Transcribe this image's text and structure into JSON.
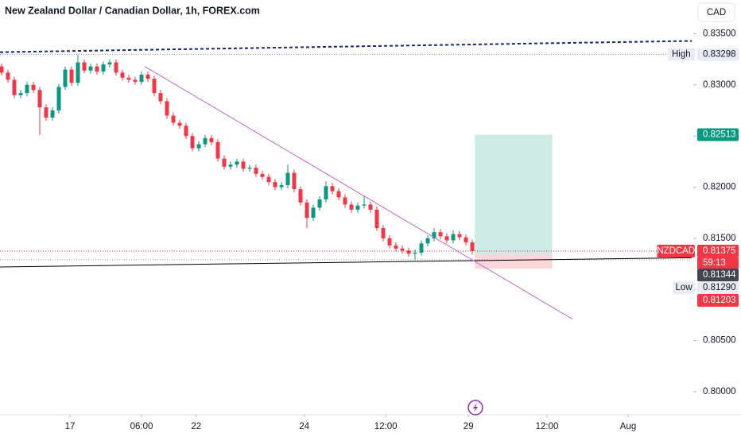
{
  "chart_data": {
    "type": "candlestick",
    "title": "New Zealand Dollar / Canadian Dollar, 1h, FOREX.com",
    "currency_button": "CAD",
    "up_color": "#089981",
    "down_color": "#f23645",
    "xlim": [
      -0.25,
      108.5
    ],
    "ylim": [
      0.7979,
      0.8383
    ],
    "xticks": [
      {
        "value": 10.75,
        "label": "17"
      },
      {
        "value": 22,
        "label": "06:00"
      },
      {
        "value": 30.6,
        "label": "22"
      },
      {
        "value": 47.6,
        "label": "24"
      },
      {
        "value": 60.4,
        "label": "12:00"
      },
      {
        "value": 73.4,
        "label": "29"
      },
      {
        "value": 85.75,
        "label": "12:00"
      },
      {
        "value": 98.5,
        "label": "Aug"
      }
    ],
    "yticks": [
      {
        "value": 0.835,
        "label": "0.83500"
      },
      {
        "value": 0.83,
        "label": "0.83000"
      },
      {
        "value": 0.825,
        "label": "0.82500"
      },
      {
        "value": 0.82,
        "label": "0.82000"
      },
      {
        "value": 0.815,
        "label": "0.81500"
      },
      {
        "value": 0.81,
        "label": "0.81000"
      },
      {
        "value": 0.805,
        "label": "0.80500"
      },
      {
        "value": 0.8,
        "label": "0.80000"
      }
    ],
    "open": [
      0.8318,
      0.8312,
      0.8305,
      0.829,
      0.8292,
      0.83,
      0.8295,
      0.8278,
      0.8268,
      0.8275,
      0.8298,
      0.8315,
      0.8302,
      0.8322,
      0.8314,
      0.8318,
      0.8313,
      0.832,
      0.8322,
      0.8312,
      0.8307,
      0.8305,
      0.8303,
      0.831,
      0.8306,
      0.8292,
      0.8284,
      0.827,
      0.8263,
      0.826,
      0.825,
      0.8238,
      0.8242,
      0.8248,
      0.8244,
      0.8228,
      0.822,
      0.8222,
      0.8225,
      0.8218,
      0.8219,
      0.8213,
      0.821,
      0.8205,
      0.82,
      0.8202,
      0.8214,
      0.8198,
      0.8185,
      0.817,
      0.818,
      0.8188,
      0.8201,
      0.8196,
      0.819,
      0.8183,
      0.8178,
      0.8182,
      0.8183,
      0.8178,
      0.816,
      0.815,
      0.8143,
      0.814,
      0.8138,
      0.8135,
      0.8136,
      0.8145,
      0.815,
      0.8156,
      0.8152,
      0.8148,
      0.8154,
      0.8151,
      0.8146
    ],
    "high": [
      0.8321,
      0.8315,
      0.8308,
      0.8295,
      0.8303,
      0.8303,
      0.8298,
      0.8281,
      0.8278,
      0.8301,
      0.8318,
      0.8318,
      0.83298,
      0.8325,
      0.8321,
      0.8321,
      0.8323,
      0.8325,
      0.8325,
      0.8315,
      0.831,
      0.8308,
      0.8313,
      0.8313,
      0.8309,
      0.8295,
      0.8287,
      0.8273,
      0.8266,
      0.8263,
      0.8253,
      0.8245,
      0.8251,
      0.8251,
      0.8247,
      0.8231,
      0.8225,
      0.8228,
      0.8228,
      0.8222,
      0.8222,
      0.8216,
      0.8213,
      0.8208,
      0.8205,
      0.8222,
      0.8217,
      0.8201,
      0.8188,
      0.8183,
      0.8191,
      0.8206,
      0.8204,
      0.8199,
      0.8193,
      0.8186,
      0.8185,
      0.8191,
      0.8186,
      0.8181,
      0.8163,
      0.8153,
      0.8146,
      0.8143,
      0.8141,
      0.8139,
      0.8148,
      0.8153,
      0.816,
      0.8159,
      0.8155,
      0.8158,
      0.8157,
      0.8154,
      0.8149
    ],
    "low": [
      0.8309,
      0.8302,
      0.8287,
      0.8287,
      0.8289,
      0.8292,
      0.8251,
      0.8265,
      0.8265,
      0.8272,
      0.8295,
      0.8299,
      0.8299,
      0.8311,
      0.8311,
      0.831,
      0.831,
      0.8317,
      0.8309,
      0.8304,
      0.8302,
      0.83,
      0.83,
      0.8303,
      0.8289,
      0.8281,
      0.8267,
      0.826,
      0.8257,
      0.8247,
      0.8235,
      0.8235,
      0.8239,
      0.8241,
      0.8225,
      0.8217,
      0.8217,
      0.8219,
      0.8215,
      0.8215,
      0.821,
      0.8207,
      0.8202,
      0.8197,
      0.8197,
      0.8199,
      0.8195,
      0.8182,
      0.816,
      0.8167,
      0.8177,
      0.8185,
      0.8193,
      0.8187,
      0.818,
      0.8175,
      0.8175,
      0.8179,
      0.8175,
      0.8157,
      0.8147,
      0.814,
      0.8137,
      0.8135,
      0.8132,
      0.8129,
      0.8133,
      0.8142,
      0.8147,
      0.8149,
      0.8145,
      0.8145,
      0.8148,
      0.8143,
      0.8134
    ],
    "close": [
      0.8312,
      0.8305,
      0.829,
      0.8292,
      0.83,
      0.8295,
      0.8278,
      0.8268,
      0.8275,
      0.8298,
      0.8315,
      0.8302,
      0.8322,
      0.8314,
      0.8318,
      0.8313,
      0.832,
      0.8322,
      0.8312,
      0.8307,
      0.8305,
      0.8303,
      0.831,
      0.8306,
      0.8292,
      0.8284,
      0.827,
      0.8263,
      0.826,
      0.825,
      0.8238,
      0.8242,
      0.8248,
      0.8244,
      0.8228,
      0.822,
      0.8222,
      0.8225,
      0.8218,
      0.8219,
      0.8213,
      0.821,
      0.8205,
      0.82,
      0.8202,
      0.8214,
      0.8198,
      0.8185,
      0.817,
      0.818,
      0.8188,
      0.8201,
      0.8196,
      0.819,
      0.8183,
      0.8178,
      0.8182,
      0.8183,
      0.8178,
      0.816,
      0.815,
      0.8143,
      0.814,
      0.8138,
      0.8135,
      0.8136,
      0.8145,
      0.815,
      0.8156,
      0.8152,
      0.8148,
      0.8154,
      0.8151,
      0.8146,
      0.81375
    ],
    "drawings": [
      {
        "color": "#1a237e",
        "dashed": true,
        "x": [
          -0.25,
          108.5
        ],
        "y": [
          0.8332,
          0.8343
        ]
      },
      {
        "color": "#000000",
        "dashed": false,
        "x": [
          -0.25,
          108.5
        ],
        "y": [
          0.8122,
          0.8131
        ]
      },
      {
        "color": "#ba68c8",
        "dashed": false,
        "x": [
          22.5,
          89.75
        ],
        "y": [
          0.8318,
          0.8071
        ]
      }
    ],
    "position": {
      "x": [
        74.4,
        86.6
      ],
      "entry": 0.81344,
      "target": 0.82513,
      "stop": 0.81203
    },
    "markers": [
      {
        "name": "High",
        "label": "0.83298",
        "value": 0.83298,
        "color": "#e9ecf2"
      },
      {
        "label": "0.82513",
        "value": 0.82513,
        "color": "#089981"
      },
      {
        "name": "NZDCAD",
        "label": "0.81375",
        "value": 0.81375,
        "color": "#f23645",
        "countdown": "59:13"
      },
      {
        "label": "0.81344",
        "value": 0.81344,
        "color": "#434651"
      },
      {
        "name": "Low",
        "label": "0.81290",
        "value": 0.8129,
        "color": "#e9ecf2"
      },
      {
        "label": "0.81203",
        "value": 0.81203,
        "color": "#f23645"
      }
    ]
  }
}
